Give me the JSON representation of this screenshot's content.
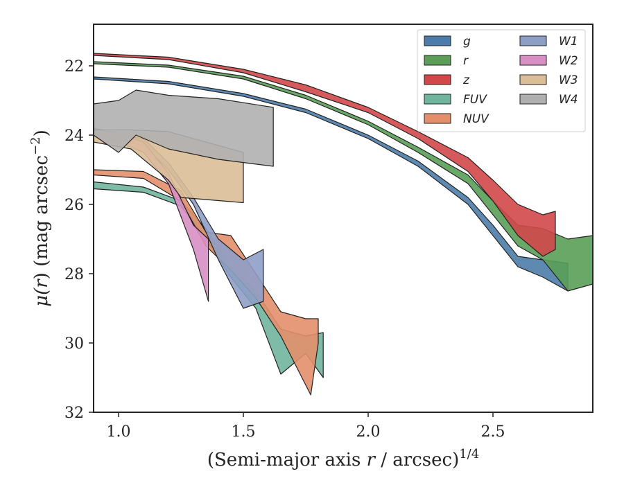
{
  "chart_data": {
    "type": "area",
    "xlabel": "(Semi-major axis r / arcsec)",
    "xlabel_prefix": "(Semi-major axis ",
    "xlabel_var": "r",
    "xlabel_suffix": " / arcsec)",
    "xlabel_exp": "1/4",
    "ylabel_prefix": "μ(",
    "ylabel_var": "r",
    "ylabel_mid": ") (mag arcsec",
    "ylabel_exp": "−2",
    "ylabel_end": ")",
    "xlim": [
      0.9,
      2.9
    ],
    "ylim": [
      32.0,
      20.8
    ],
    "y_inverted": true,
    "grid": false,
    "legend_position": "top-right",
    "legend_columns": 2,
    "x_ticks": [
      1.0,
      1.5,
      2.0,
      2.5
    ],
    "x_tick_labels": [
      "1.0",
      "1.5",
      "2.0",
      "2.5"
    ],
    "y_ticks": [
      22,
      24,
      26,
      28,
      30,
      32
    ],
    "y_tick_labels": [
      "22",
      "24",
      "26",
      "28",
      "30",
      "32"
    ],
    "series": [
      {
        "name": "g",
        "color": "#4c7daa",
        "upper": [
          [
            0.9,
            22.32
          ],
          [
            1.2,
            22.45
          ],
          [
            1.5,
            22.8
          ],
          [
            1.75,
            23.25
          ],
          [
            2.0,
            24.0
          ],
          [
            2.2,
            24.75
          ],
          [
            2.4,
            25.8
          ],
          [
            2.5,
            26.6
          ],
          [
            2.6,
            27.5
          ],
          [
            2.7,
            27.6
          ],
          [
            2.8,
            27.7
          ]
        ],
        "lower": [
          [
            0.9,
            22.38
          ],
          [
            1.2,
            22.52
          ],
          [
            1.5,
            22.88
          ],
          [
            1.75,
            23.35
          ],
          [
            2.0,
            24.1
          ],
          [
            2.2,
            24.9
          ],
          [
            2.4,
            26.0
          ],
          [
            2.5,
            26.9
          ],
          [
            2.6,
            27.8
          ],
          [
            2.7,
            28.1
          ],
          [
            2.8,
            28.5
          ]
        ]
      },
      {
        "name": "r",
        "color": "#5a9e58",
        "upper": [
          [
            0.9,
            21.88
          ],
          [
            1.2,
            21.98
          ],
          [
            1.5,
            22.3
          ],
          [
            1.75,
            22.85
          ],
          [
            2.0,
            23.6
          ],
          [
            2.2,
            24.35
          ],
          [
            2.4,
            25.15
          ],
          [
            2.5,
            25.9
          ],
          [
            2.6,
            26.6
          ],
          [
            2.7,
            26.7
          ],
          [
            2.8,
            27.0
          ],
          [
            2.9,
            26.9
          ]
        ],
        "lower": [
          [
            0.9,
            21.94
          ],
          [
            1.2,
            22.04
          ],
          [
            1.5,
            22.38
          ],
          [
            1.75,
            22.95
          ],
          [
            2.0,
            23.7
          ],
          [
            2.2,
            24.5
          ],
          [
            2.4,
            25.4
          ],
          [
            2.5,
            26.3
          ],
          [
            2.6,
            27.2
          ],
          [
            2.7,
            27.6
          ],
          [
            2.8,
            28.5
          ],
          [
            2.9,
            28.3
          ]
        ]
      },
      {
        "name": "z",
        "color": "#d1474a",
        "upper": [
          [
            0.9,
            21.64
          ],
          [
            1.2,
            21.75
          ],
          [
            1.5,
            22.1
          ],
          [
            1.75,
            22.55
          ],
          [
            2.0,
            23.2
          ],
          [
            2.2,
            23.9
          ],
          [
            2.4,
            24.65
          ],
          [
            2.5,
            25.3
          ],
          [
            2.6,
            26.0
          ],
          [
            2.7,
            26.3
          ],
          [
            2.75,
            26.2
          ]
        ],
        "lower": [
          [
            0.9,
            21.7
          ],
          [
            1.2,
            21.82
          ],
          [
            1.5,
            22.2
          ],
          [
            1.75,
            22.75
          ],
          [
            2.0,
            23.35
          ],
          [
            2.2,
            24.1
          ],
          [
            2.4,
            25.05
          ],
          [
            2.5,
            25.9
          ],
          [
            2.6,
            26.9
          ],
          [
            2.7,
            27.5
          ],
          [
            2.75,
            27.3
          ]
        ]
      },
      {
        "name": "FUV",
        "color": "#70b59d",
        "upper": [
          [
            0.9,
            25.35
          ],
          [
            1.1,
            25.5
          ],
          [
            1.25,
            25.9
          ],
          [
            1.35,
            26.7
          ],
          [
            1.45,
            27.8
          ],
          [
            1.55,
            28.5
          ],
          [
            1.65,
            29.6
          ],
          [
            1.75,
            29.8
          ],
          [
            1.82,
            29.7
          ]
        ],
        "lower": [
          [
            0.9,
            25.55
          ],
          [
            1.1,
            25.65
          ],
          [
            1.25,
            26.05
          ],
          [
            1.35,
            27.0
          ],
          [
            1.45,
            28.1
          ],
          [
            1.55,
            29.0
          ],
          [
            1.65,
            30.9
          ],
          [
            1.75,
            30.3
          ],
          [
            1.82,
            31.0
          ]
        ]
      },
      {
        "name": "NUV",
        "color": "#e38f6c",
        "upper": [
          [
            0.9,
            25.0
          ],
          [
            1.1,
            25.05
          ],
          [
            1.25,
            25.6
          ],
          [
            1.35,
            26.8
          ],
          [
            1.45,
            26.9
          ],
          [
            1.55,
            28.0
          ],
          [
            1.65,
            29.1
          ],
          [
            1.75,
            29.3
          ],
          [
            1.8,
            29.3
          ]
        ],
        "lower": [
          [
            0.9,
            25.15
          ],
          [
            1.1,
            25.25
          ],
          [
            1.25,
            25.9
          ],
          [
            1.35,
            27.2
          ],
          [
            1.45,
            27.9
          ],
          [
            1.55,
            28.7
          ],
          [
            1.65,
            29.8
          ],
          [
            1.77,
            31.5
          ],
          [
            1.8,
            30.0
          ]
        ]
      },
      {
        "name": "W1",
        "color": "#8e9fc6",
        "upper": [
          [
            0.9,
            23.9
          ],
          [
            1.1,
            24.1
          ],
          [
            1.2,
            24.8
          ],
          [
            1.3,
            25.8
          ],
          [
            1.4,
            27.0
          ],
          [
            1.5,
            27.6
          ],
          [
            1.58,
            27.3
          ]
        ],
        "lower": [
          [
            0.9,
            24.0
          ],
          [
            1.1,
            24.3
          ],
          [
            1.2,
            25.0
          ],
          [
            1.3,
            26.0
          ],
          [
            1.4,
            27.6
          ],
          [
            1.5,
            29.0
          ],
          [
            1.58,
            28.8
          ]
        ]
      },
      {
        "name": "W2",
        "color": "#d88fc4",
        "upper": [
          [
            0.9,
            23.8
          ],
          [
            1.0,
            23.95
          ],
          [
            1.1,
            24.2
          ],
          [
            1.2,
            25.1
          ],
          [
            1.3,
            26.6
          ],
          [
            1.36,
            27.0
          ]
        ],
        "lower": [
          [
            0.9,
            24.0
          ],
          [
            1.0,
            24.2
          ],
          [
            1.1,
            24.5
          ],
          [
            1.2,
            25.4
          ],
          [
            1.3,
            27.3
          ],
          [
            1.36,
            28.8
          ]
        ]
      },
      {
        "name": "W3",
        "color": "#dbbe98",
        "upper": [
          [
            0.9,
            23.85
          ],
          [
            1.05,
            23.85
          ],
          [
            1.2,
            23.9
          ],
          [
            1.35,
            24.2
          ],
          [
            1.5,
            24.5
          ]
        ],
        "lower": [
          [
            0.9,
            24.2
          ],
          [
            1.05,
            24.4
          ],
          [
            1.2,
            25.3
          ],
          [
            1.25,
            25.8
          ],
          [
            1.5,
            25.95
          ]
        ]
      },
      {
        "name": "W4",
        "color": "#b0b0b0",
        "upper": [
          [
            0.9,
            23.1
          ],
          [
            1.0,
            23.0
          ],
          [
            1.07,
            22.7
          ],
          [
            1.2,
            22.85
          ],
          [
            1.4,
            22.95
          ],
          [
            1.62,
            23.2
          ]
        ],
        "lower": [
          [
            0.9,
            24.0
          ],
          [
            1.0,
            24.5
          ],
          [
            1.07,
            24.0
          ],
          [
            1.2,
            24.4
          ],
          [
            1.4,
            24.7
          ],
          [
            1.62,
            24.9
          ]
        ]
      }
    ]
  }
}
